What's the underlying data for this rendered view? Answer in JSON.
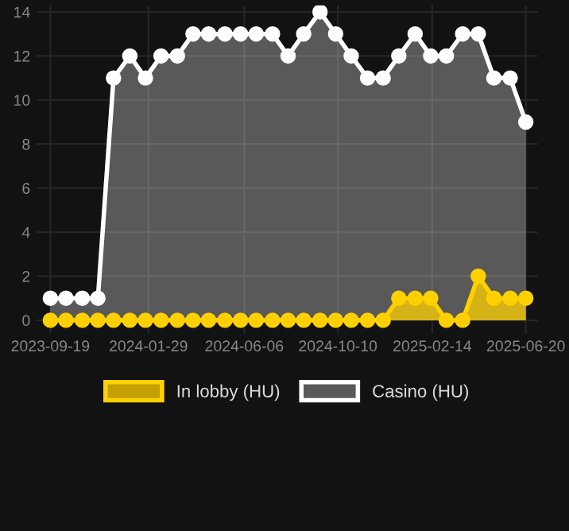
{
  "chart_data": {
    "type": "area",
    "x": [
      "2023-09-19",
      "2023-10-10",
      "2023-11-01",
      "2023-11-22",
      "2023-12-13",
      "2024-01-04",
      "2024-01-25",
      "2024-02-15",
      "2024-03-08",
      "2024-03-29",
      "2024-04-19",
      "2024-05-11",
      "2024-06-01",
      "2024-06-22",
      "2024-07-14",
      "2024-08-04",
      "2024-08-25",
      "2024-09-16",
      "2024-10-07",
      "2024-10-28",
      "2024-11-19",
      "2024-12-10",
      "2024-12-31",
      "2025-01-22",
      "2025-02-12",
      "2025-03-05",
      "2025-03-27",
      "2025-04-17",
      "2025-05-08",
      "2025-05-30",
      "2025-06-20"
    ],
    "series": [
      {
        "name": "In lobby (HU)",
        "color": "#ffd000",
        "values": [
          0,
          0,
          0,
          0,
          0,
          0,
          0,
          0,
          0,
          0,
          0,
          0,
          0,
          0,
          0,
          0,
          0,
          0,
          0,
          0,
          0,
          0,
          1,
          1,
          1,
          0,
          0,
          2,
          1,
          1,
          1
        ]
      },
      {
        "name": "Casino (HU)",
        "color": "#ffffff",
        "values": [
          1,
          1,
          1,
          1,
          11,
          12,
          11,
          12,
          12,
          13,
          13,
          13,
          13,
          13,
          13,
          12,
          13,
          14,
          13,
          12,
          11,
          11,
          12,
          13,
          12,
          12,
          13,
          13,
          11,
          11,
          9
        ]
      }
    ],
    "xlim": [
      "2023-09-01",
      "2025-07-06"
    ],
    "ylim": [
      -0.6,
      14.3
    ],
    "yticks": [
      0,
      2,
      4,
      6,
      8,
      10,
      12,
      14
    ],
    "xticks": [
      {
        "value": "2023-09-19",
        "label": "2023-09-19"
      },
      {
        "value": "2024-01-29",
        "label": "2024-01-29"
      },
      {
        "value": "2024-06-06",
        "label": "2024-06-06"
      },
      {
        "value": "2024-10-10",
        "label": "2024-10-10"
      },
      {
        "value": "2025-02-14",
        "label": "2025-02-14"
      },
      {
        "value": "2025-06-20",
        "label": "2025-06-20"
      }
    ],
    "grid": true,
    "legend": "bottom",
    "marker": "circle",
    "line_style": "solid"
  }
}
